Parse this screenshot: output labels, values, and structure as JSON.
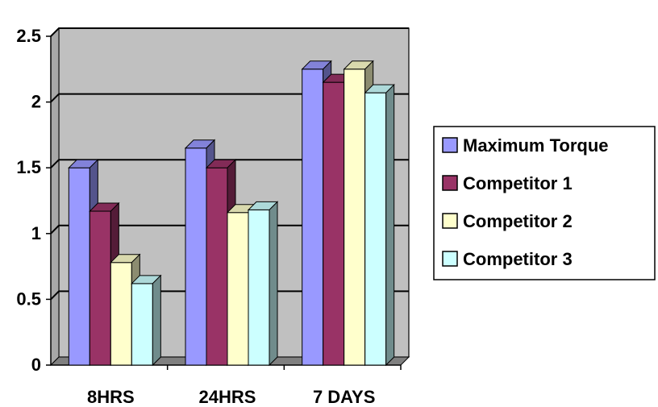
{
  "chart_data": {
    "type": "bar",
    "style": "3d-clustered-column",
    "categories": [
      "8HRS",
      "24HRS",
      "7 DAYS"
    ],
    "series": [
      {
        "name": "Maximum Torque",
        "values": [
          1.5,
          1.65,
          2.25
        ],
        "color": "#9999FF"
      },
      {
        "name": "Competitor 1",
        "values": [
          1.17,
          1.5,
          2.15
        ],
        "color": "#993366"
      },
      {
        "name": "Competitor 2",
        "values": [
          0.78,
          1.16,
          2.25
        ],
        "color": "#FFFFCC"
      },
      {
        "name": "Competitor 3",
        "values": [
          0.62,
          1.18,
          2.07
        ],
        "color": "#CCFFFF"
      }
    ],
    "y_ticks": [
      "0",
      "0.5",
      "1",
      "1.5",
      "2",
      "2.5"
    ],
    "ylim": [
      0,
      2.5
    ],
    "grid": true,
    "plot_background": "#C0C0C0",
    "legend_position": "right"
  }
}
